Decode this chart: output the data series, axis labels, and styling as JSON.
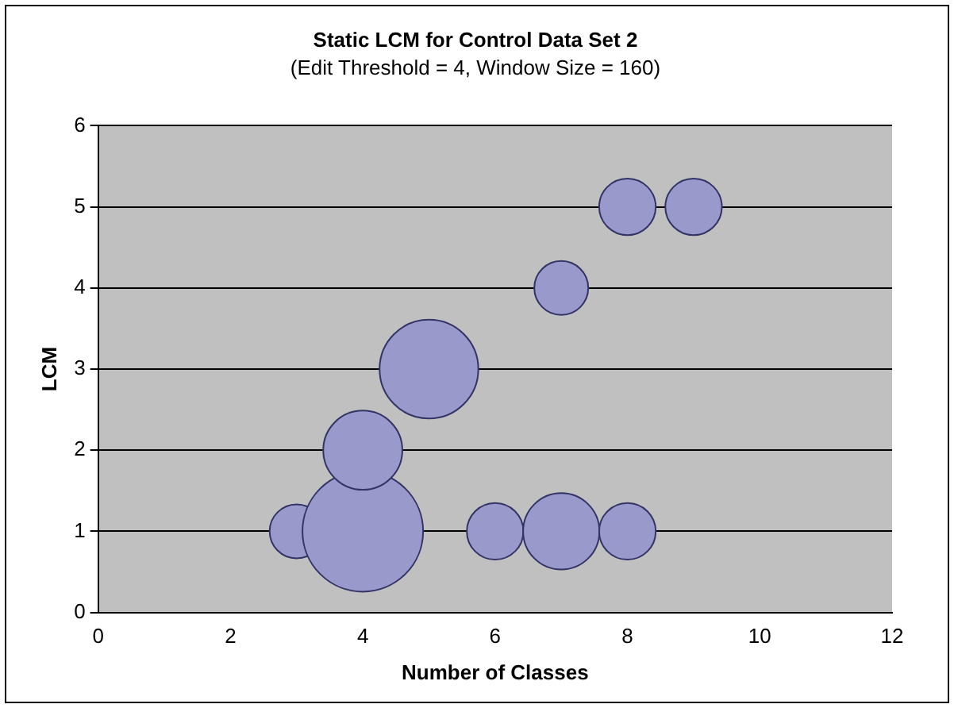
{
  "chart_data": {
    "type": "bubble",
    "title": "Static LCM for Control Data Set 2",
    "subtitle": "(Edit Threshold = 4, Window Size = 160)",
    "xlabel": "Number of Classes",
    "ylabel": "LCM",
    "x": [
      3,
      4,
      4,
      5,
      6,
      7,
      8,
      7,
      8,
      9
    ],
    "values": [
      1,
      1,
      2,
      3,
      1,
      1,
      1,
      4,
      5,
      5
    ],
    "sizes": [
      0.2,
      1,
      0.43,
      0.67,
      0.22,
      0.4,
      0.22,
      0.2,
      0.22,
      0.22
    ],
    "color": "#9999cc",
    "xlim": [
      0,
      12
    ],
    "xticks": [
      0,
      2,
      4,
      6,
      8,
      10,
      12
    ],
    "ylim": [
      0,
      6
    ],
    "yticks": [
      0,
      1,
      2,
      3,
      4,
      5,
      6
    ],
    "grid": "y",
    "legend": false
  }
}
